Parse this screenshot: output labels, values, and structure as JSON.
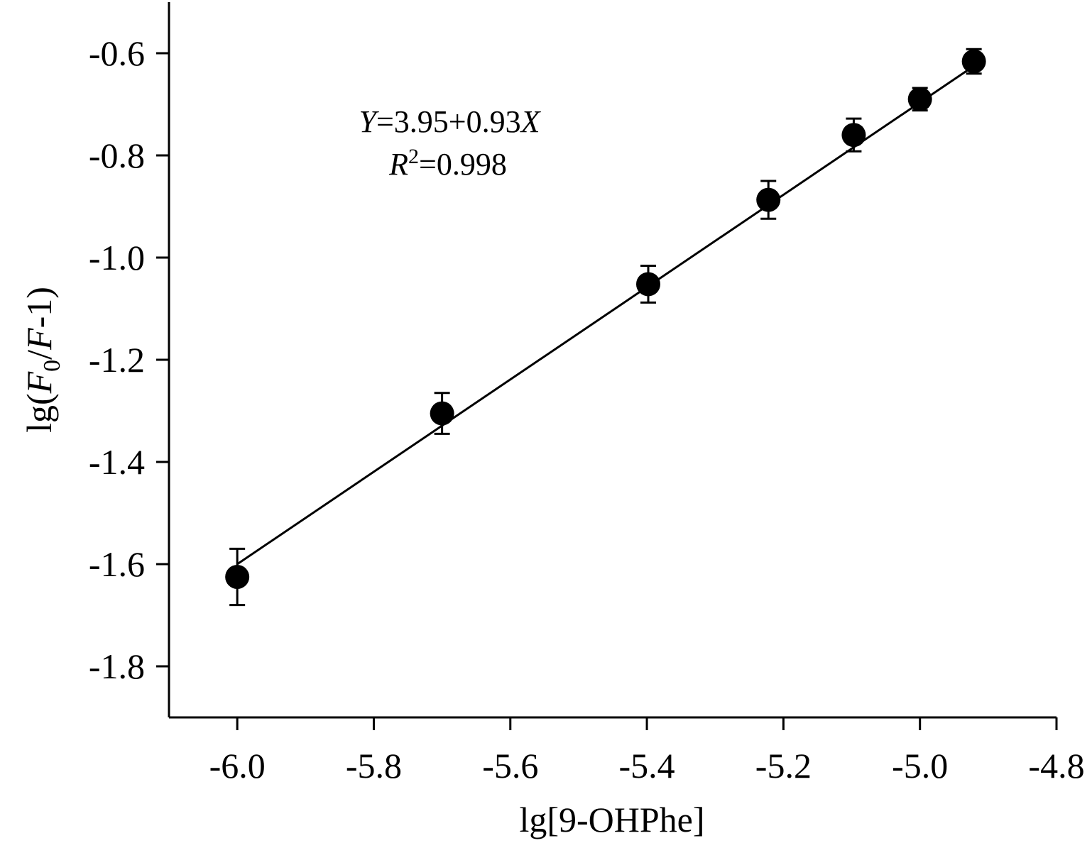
{
  "chart_data": {
    "type": "scatter",
    "xlabel": "lg[9-OHPhe]",
    "ylabel": {
      "prefix": "lg(",
      "f0": "F",
      "f0_sub": "0",
      "slash": "/",
      "f": "F",
      "suffix": "-1)"
    },
    "xlim": [
      -6.1,
      -4.8
    ],
    "ylim": [
      -1.9,
      -0.5
    ],
    "xticks": [
      -6.0,
      -5.8,
      -5.6,
      -5.4,
      -5.2,
      -5.0,
      -4.8
    ],
    "xtick_labels": [
      "-6.0",
      "-5.8",
      "-5.6",
      "-5.4",
      "-5.2",
      "-5.0",
      "-4.8"
    ],
    "yticks": [
      -0.6,
      -0.8,
      -1.0,
      -1.2,
      -1.4,
      -1.6,
      -1.8
    ],
    "ytick_labels": [
      "-0.6",
      "-0.8",
      "-1.0",
      "-1.2",
      "-1.4",
      "-1.6",
      "-1.8"
    ],
    "grid": false,
    "points": [
      {
        "x": -6.0,
        "y": -1.625,
        "err": 0.055
      },
      {
        "x": -5.7,
        "y": -1.305,
        "err": 0.04
      },
      {
        "x": -5.398,
        "y": -1.052,
        "err": 0.036
      },
      {
        "x": -5.222,
        "y": -0.887,
        "err": 0.037
      },
      {
        "x": -5.097,
        "y": -0.76,
        "err": 0.032
      },
      {
        "x": -5.0,
        "y": -0.69,
        "err": 0.022
      },
      {
        "x": -4.921,
        "y": -0.616,
        "err": 0.024
      }
    ],
    "fit": {
      "intercept": 3.95,
      "slope": 0.93,
      "x_range": [
        -6.0,
        -4.921
      ],
      "y_range": [
        -1.6,
        -0.625
      ]
    },
    "annotation": {
      "eq_y": "Y",
      "eq_mid": "=3.95+0.93",
      "eq_x": "X",
      "r_sym": "R",
      "r_sup": "2",
      "r_val": "=0.998"
    }
  }
}
